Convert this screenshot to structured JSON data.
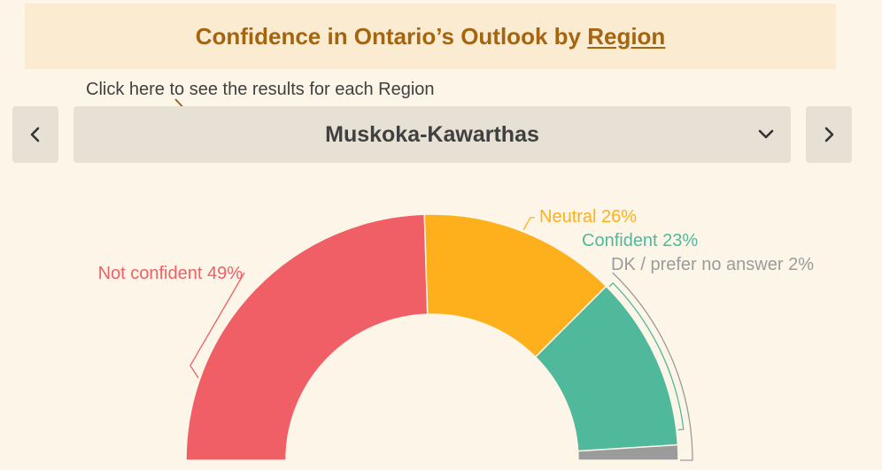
{
  "header": {
    "title_prefix": "Confidence in Ontario’s Outlook by ",
    "title_link": "Region"
  },
  "selector": {
    "hint": "Click here to see the results for each Region",
    "selected_region": "Muskoka-Kawarthas",
    "prev_icon": "chevron-left-icon",
    "next_icon": "chevron-right-icon",
    "dropdown_icon": "chevron-down-icon"
  },
  "colors": {
    "title": "#a5640e",
    "not_confident": "#f05e66",
    "neutral": "#fdb01c",
    "confident": "#50b89b",
    "dk": "#9b9b9b"
  },
  "chart_data": {
    "type": "pie",
    "shape": "half-donut gauge",
    "categories": [
      "Not confident",
      "Neutral",
      "Confident",
      "DK / prefer no answer"
    ],
    "values": [
      49,
      26,
      23,
      2
    ],
    "labels": [
      "Not confident 49%",
      "Neutral 26%",
      "Confident 23%",
      "DK / prefer no answer 2%"
    ],
    "unit": "%"
  }
}
